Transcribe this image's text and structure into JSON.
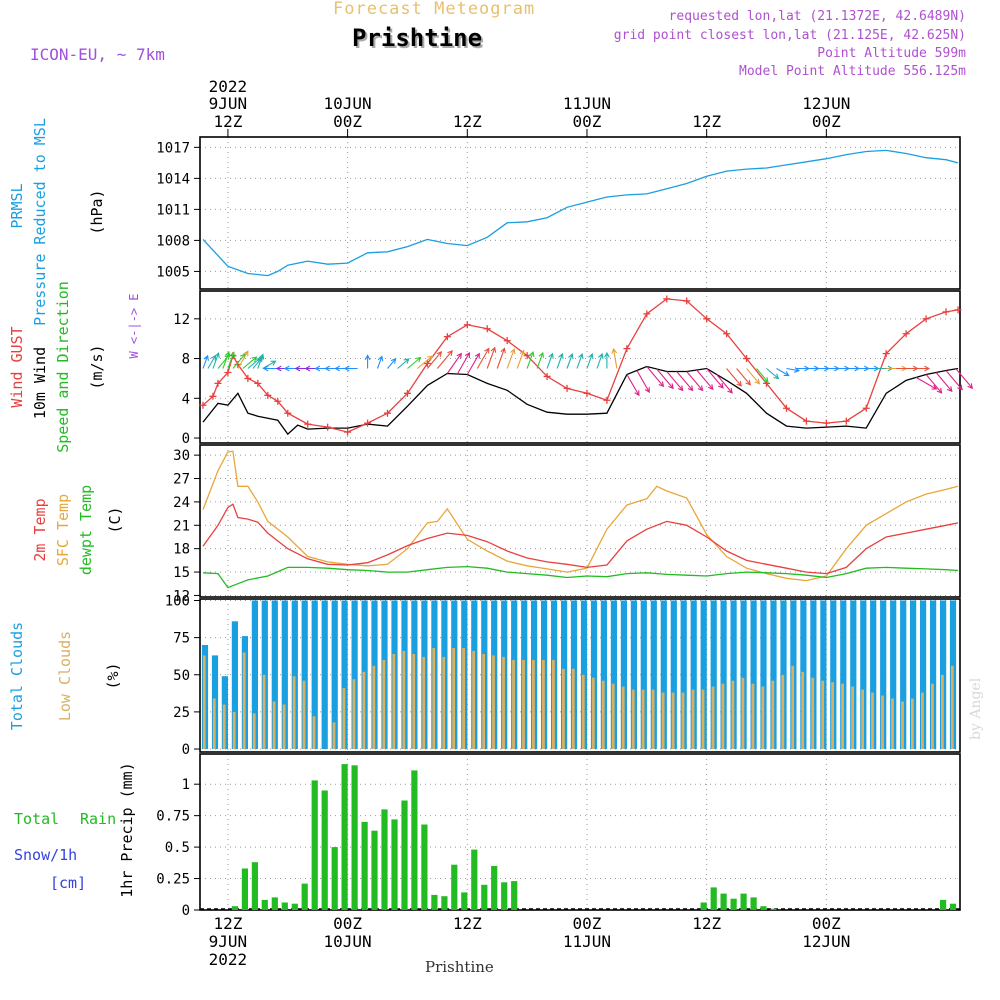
{
  "header": {
    "supertitle": "Forecast Meteogram",
    "title": "Prishtine",
    "model": "ICON-EU, ~ 7km",
    "info": [
      "requested lon,lat (21.1372E, 42.6489N)",
      "grid point closest lon,lat (21.125E, 42.625N)",
      "Point Altitude 599m",
      "Model Point Altitude 556.125m"
    ]
  },
  "footer": {
    "location": "Prishtine",
    "watermark": "by Angel"
  },
  "time_axis": {
    "top_year": "2022",
    "ticks": [
      {
        "hour": 0,
        "date": "9JUN",
        "time": "12Z"
      },
      {
        "hour": 12,
        "date": "10JUN",
        "time": "00Z"
      },
      {
        "hour": 24,
        "date": "",
        "time": "12Z"
      },
      {
        "hour": 36,
        "date": "11JUN",
        "time": "00Z"
      },
      {
        "hour": 48,
        "date": "",
        "time": "12Z"
      },
      {
        "hour": 60,
        "date": "12JUN",
        "time": "00Z"
      }
    ],
    "bottom_year": "2022",
    "range_hours": [
      -2.8,
      73.4
    ]
  },
  "panel_labels": {
    "pressure": {
      "l1": "PRMSL",
      "l2": "Pressure Reduced to MSL",
      "unit": "(hPa)"
    },
    "wind": {
      "l1": "Wind GUST",
      "l2": "10m Wind",
      "l3": "Speed and Direction",
      "unit": "(m/s)",
      "compass": "W <-|-> E"
    },
    "temp": {
      "l1": "2m Temp",
      "l2": "SFC Temp",
      "l3": "dewpt Temp",
      "unit": "(C)"
    },
    "clouds": {
      "l1": "Total Clouds",
      "l2": "Low Clouds",
      "unit": "(%)"
    },
    "precip": {
      "l1": "Total",
      "l1b": "Rain",
      "l2": "Snow/1h",
      "l3": "[cm]",
      "unit": "1hr Precip (mm)"
    }
  },
  "colors": {
    "pressure": "#1a9fe0",
    "gust": "#e8403f",
    "wind": "#000000",
    "temp2m": "#e8403f",
    "sfc": "#e8a73a",
    "dewpt": "#22bb22",
    "total_clouds": "#1a9fe0",
    "low_clouds": "#d8b060",
    "rain": "#22bb22"
  },
  "chart_data": [
    {
      "type": "line",
      "panel": "pressure",
      "ylim": [
        1003.3,
        1018
      ],
      "yticks": [
        1005,
        1008,
        1011,
        1014,
        1017
      ],
      "series": [
        {
          "name": "PRMSL",
          "x": [
            -2.5,
            0,
            2,
            4,
            5,
            6,
            8,
            10,
            12,
            14,
            16,
            18,
            20,
            22,
            24,
            26,
            28,
            30,
            32,
            34,
            36,
            38,
            40,
            42,
            44,
            46,
            48,
            50,
            52,
            54,
            56,
            58,
            60,
            62,
            64,
            66,
            68,
            70,
            72,
            73.2
          ],
          "values": [
            1008.1,
            1005.5,
            1004.8,
            1004.6,
            1005.0,
            1005.6,
            1006.0,
            1005.7,
            1005.8,
            1006.8,
            1006.9,
            1007.4,
            1008.1,
            1007.7,
            1007.5,
            1008.3,
            1009.7,
            1009.8,
            1010.2,
            1011.2,
            1011.7,
            1012.2,
            1012.4,
            1012.5,
            1013.0,
            1013.5,
            1014.2,
            1014.7,
            1014.9,
            1015.0,
            1015.3,
            1015.6,
            1015.9,
            1016.3,
            1016.6,
            1016.7,
            1016.4,
            1016.0,
            1015.8,
            1015.5
          ]
        }
      ]
    },
    {
      "type": "line",
      "panel": "wind",
      "ylim": [
        -0.5,
        14.8
      ],
      "yticks": [
        0,
        4,
        8,
        12
      ],
      "series": [
        {
          "name": "Wind GUST",
          "x": [
            -2.5,
            -1.5,
            -1,
            0,
            0.5,
            1,
            2,
            3,
            4,
            5,
            6,
            8,
            10,
            12,
            14,
            16,
            18,
            20,
            22,
            24,
            26,
            28,
            30,
            32,
            34,
            36,
            38,
            40,
            42,
            44,
            46,
            48,
            50,
            52,
            54,
            56,
            58,
            60,
            62,
            64,
            66,
            68,
            70,
            72,
            73.2
          ],
          "values": [
            3.3,
            4.2,
            5.5,
            6.6,
            8.3,
            7.4,
            6.0,
            5.5,
            4.3,
            3.7,
            2.5,
            1.4,
            1.1,
            0.6,
            1.5,
            2.5,
            4.5,
            7.5,
            10.2,
            11.4,
            11.0,
            9.8,
            8.3,
            6.2,
            5.0,
            4.5,
            3.8,
            9.0,
            12.5,
            14.0,
            13.8,
            12.0,
            10.5,
            8.0,
            5.5,
            3.0,
            1.7,
            1.5,
            1.7,
            3.0,
            8.5,
            10.5,
            12.0,
            12.7,
            12.9
          ]
        },
        {
          "name": "10m Wind",
          "x": [
            -2.5,
            -1,
            0,
            1,
            2,
            3,
            4,
            5,
            6,
            7,
            8,
            10,
            12,
            14,
            16,
            18,
            20,
            22,
            24,
            26,
            28,
            30,
            32,
            34,
            36,
            38,
            40,
            42,
            44,
            46,
            48,
            50,
            52,
            54,
            56,
            58,
            60,
            62,
            64,
            66,
            68,
            70,
            72,
            73.2
          ],
          "values": [
            1.6,
            3.5,
            3.3,
            4.5,
            2.5,
            2.2,
            2.0,
            1.8,
            0.4,
            1.3,
            0.9,
            1.0,
            1.0,
            1.4,
            1.2,
            3.2,
            5.3,
            6.5,
            6.4,
            5.5,
            4.8,
            3.4,
            2.6,
            2.4,
            2.4,
            2.5,
            6.4,
            7.2,
            6.7,
            6.7,
            7.0,
            5.8,
            4.5,
            2.5,
            1.2,
            1.0,
            1.1,
            1.2,
            1.0,
            4.5,
            5.8,
            6.4,
            6.8,
            7.0
          ]
        }
      ]
    },
    {
      "type": "line",
      "panel": "temperature",
      "ylim": [
        11.8,
        31.3
      ],
      "yticks": [
        12,
        15,
        18,
        21,
        24,
        27,
        30
      ],
      "series": [
        {
          "name": "2m Temp",
          "x": [
            -2.5,
            -1,
            0,
            0.5,
            1,
            2,
            3,
            4,
            6,
            8,
            10,
            12,
            14,
            16,
            18,
            20,
            22,
            24,
            26,
            28,
            30,
            32,
            34,
            36,
            38,
            40,
            42,
            44,
            46,
            48,
            50,
            52,
            54,
            56,
            58,
            60,
            62,
            64,
            66,
            68,
            70,
            72,
            73.2
          ],
          "values": [
            18.3,
            21.0,
            23.3,
            23.7,
            22.0,
            21.8,
            21.4,
            20.0,
            18.0,
            16.7,
            16.0,
            15.9,
            16.2,
            17.2,
            18.4,
            19.3,
            20.0,
            19.7,
            18.9,
            17.7,
            16.8,
            16.3,
            16.0,
            15.6,
            15.9,
            19.0,
            20.5,
            21.5,
            21.0,
            19.5,
            17.7,
            16.5,
            16.0,
            15.5,
            15.0,
            14.8,
            15.6,
            18.0,
            19.5,
            20.0,
            20.5,
            21.0,
            21.3
          ]
        },
        {
          "name": "SFC Temp",
          "x": [
            -2.5,
            -1,
            0,
            0.5,
            1,
            2,
            3,
            4,
            6,
            8,
            10,
            12,
            14,
            16,
            18,
            20,
            21,
            22,
            24,
            26,
            28,
            30,
            32,
            34,
            36,
            38,
            40,
            42,
            43,
            44,
            46,
            48,
            50,
            52,
            54,
            56,
            58,
            60,
            62,
            64,
            66,
            68,
            70,
            72,
            73.2
          ],
          "values": [
            23.0,
            28.0,
            30.4,
            30.5,
            26.0,
            26.0,
            24.0,
            21.5,
            19.5,
            17.0,
            16.3,
            16.0,
            15.8,
            16.0,
            18.0,
            21.3,
            21.5,
            23.1,
            19.2,
            17.7,
            16.4,
            15.8,
            15.4,
            15.0,
            15.5,
            20.5,
            23.6,
            24.4,
            26.0,
            25.4,
            24.5,
            19.8,
            17.0,
            15.5,
            14.8,
            14.2,
            13.9,
            14.5,
            18.0,
            21.0,
            22.5,
            24.0,
            25.0,
            25.6,
            26.0
          ]
        },
        {
          "name": "dewpt Temp",
          "x": [
            -2.5,
            -1,
            0,
            1,
            2,
            4,
            6,
            8,
            10,
            12,
            14,
            16,
            18,
            20,
            22,
            24,
            26,
            28,
            30,
            32,
            34,
            36,
            38,
            40,
            42,
            44,
            46,
            48,
            50,
            52,
            54,
            56,
            58,
            60,
            62,
            64,
            66,
            68,
            70,
            72,
            73.2
          ],
          "values": [
            14.9,
            14.8,
            13.0,
            13.5,
            14.0,
            14.5,
            15.6,
            15.6,
            15.5,
            15.3,
            15.2,
            15.0,
            15.0,
            15.3,
            15.6,
            15.7,
            15.5,
            15.0,
            14.8,
            14.6,
            14.3,
            14.5,
            14.4,
            14.8,
            14.9,
            14.7,
            14.6,
            14.5,
            14.8,
            15.0,
            14.9,
            14.8,
            14.6,
            14.3,
            14.8,
            15.5,
            15.6,
            15.5,
            15.4,
            15.3,
            15.2
          ]
        }
      ]
    },
    {
      "type": "bar",
      "panel": "clouds",
      "ylim": [
        -2,
        101
      ],
      "yticks": [
        0,
        25,
        50,
        75,
        100
      ],
      "x_start": -2.8,
      "x_step": 1,
      "series": [
        {
          "name": "Total Clouds",
          "values": [
            70,
            63,
            49,
            86,
            76,
            100,
            100,
            100,
            100,
            100,
            100,
            100,
            100,
            100,
            100,
            100,
            100,
            100,
            100,
            100,
            100,
            100,
            100,
            100,
            100,
            100,
            100,
            100,
            100,
            100,
            100,
            100,
            100,
            100,
            100,
            100,
            100,
            100,
            100,
            100,
            100,
            100,
            100,
            100,
            100,
            100,
            100,
            100,
            100,
            100,
            100,
            100,
            100,
            100,
            100,
            100,
            100,
            100,
            100,
            100,
            100,
            100,
            100,
            100,
            100,
            100,
            100,
            100,
            100,
            100,
            100,
            100,
            100,
            100,
            100,
            100,
            100,
            70,
            65,
            65
          ]
        },
        {
          "name": "Low Clouds",
          "values": [
            63,
            34,
            30,
            25,
            65,
            24,
            50,
            32,
            30,
            49,
            46,
            22,
            0,
            18,
            41,
            47,
            52,
            56,
            60,
            64,
            66,
            64,
            62,
            68,
            62,
            68,
            68,
            66,
            64,
            63,
            62,
            60,
            60,
            60,
            60,
            60,
            54,
            54,
            50,
            48,
            46,
            44,
            42,
            40,
            40,
            40,
            38,
            38,
            38,
            40,
            40,
            42,
            44,
            46,
            48,
            44,
            42,
            46,
            50,
            56,
            52,
            48,
            46,
            45,
            44,
            42,
            40,
            38,
            36,
            34,
            32,
            34,
            38,
            44,
            50,
            56,
            60,
            52,
            50,
            56
          ]
        }
      ]
    },
    {
      "type": "bar",
      "panel": "precip",
      "ylim": [
        0,
        1.24
      ],
      "yticks": [
        0,
        0.25,
        0.5,
        0.75,
        1
      ],
      "x_start": -2.8,
      "x_step": 1,
      "series": [
        {
          "name": "1hr Precip",
          "values": [
            0,
            0,
            0,
            0.03,
            0.33,
            0.38,
            0.08,
            0.1,
            0.06,
            0.05,
            0.21,
            1.03,
            0.95,
            0.5,
            1.16,
            1.15,
            0.7,
            0.63,
            0.8,
            0.72,
            0.87,
            1.11,
            0.68,
            0.12,
            0.11,
            0.36,
            0.14,
            0.48,
            0.2,
            0.35,
            0.22,
            0.23,
            0,
            0,
            0,
            0,
            0,
            0,
            0,
            0,
            0,
            0,
            0,
            0,
            0,
            0,
            0,
            0,
            0,
            0,
            0.06,
            0.18,
            0.13,
            0.09,
            0.13,
            0.1,
            0.03,
            0.01,
            0,
            0,
            0,
            0,
            0,
            0,
            0,
            0,
            0,
            0,
            0,
            0,
            0,
            0,
            0,
            0,
            0.08,
            0.05,
            0.17,
            0.12,
            0.47,
            0.21,
            0.2,
            0.08
          ]
        }
      ]
    }
  ],
  "wind_vectors": {
    "x": [
      -2.5,
      -2,
      -1.5,
      -1,
      -0.5,
      0,
      0.5,
      1,
      1.5,
      2,
      2.5,
      3,
      3.5,
      5,
      6,
      7,
      8,
      9,
      10,
      11,
      12,
      13,
      14,
      15,
      16,
      17,
      18,
      19,
      20,
      21,
      22,
      23,
      24,
      25,
      26,
      27,
      28,
      29,
      30,
      31,
      32,
      33,
      34,
      35,
      36,
      37,
      38,
      39,
      40,
      41,
      42,
      43,
      44,
      45,
      46,
      47,
      48,
      49,
      50,
      51,
      52,
      53,
      54,
      55,
      56,
      57,
      58,
      59,
      60,
      61,
      62,
      63,
      64,
      65,
      66,
      67,
      68,
      69,
      70,
      71,
      72,
      73
    ],
    "dir": [
      200,
      210,
      200,
      220,
      200,
      200,
      220,
      210,
      230,
      230,
      220,
      200,
      240,
      90,
      90,
      90,
      90,
      90,
      90,
      90,
      90,
      90,
      180,
      200,
      220,
      230,
      230,
      230,
      220,
      220,
      215,
      210,
      210,
      210,
      200,
      200,
      200,
      200,
      200,
      200,
      200,
      200,
      200,
      200,
      200,
      200,
      180,
      170,
      330,
      330,
      320,
      320,
      320,
      320,
      320,
      320,
      320,
      320,
      320,
      320,
      320,
      320,
      310,
      300,
      280,
      270,
      270,
      270,
      270,
      270,
      270,
      270,
      270,
      270,
      270,
      270,
      270,
      300,
      320,
      320,
      320,
      320
    ]
  }
}
